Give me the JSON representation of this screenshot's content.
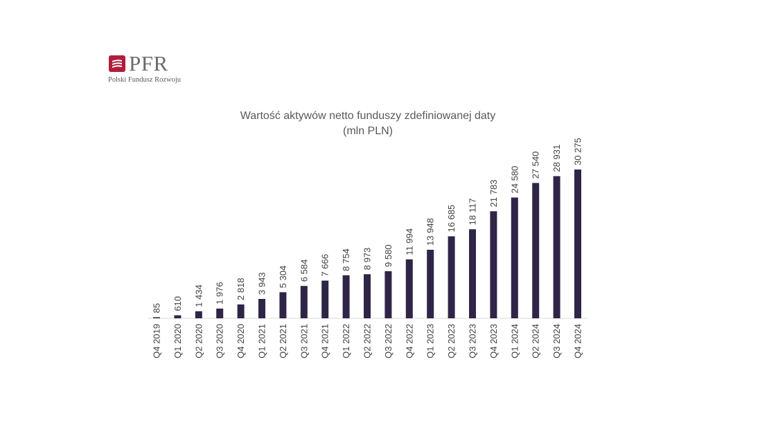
{
  "logo": {
    "text": "PFR",
    "subtitle": "Polski Fundusz Rozwoju",
    "color": "#b01e3b"
  },
  "chart_data": {
    "type": "bar",
    "title": "Wartość aktywów netto funduszy zdefiniowanej daty",
    "subtitle": "(mln PLN)",
    "categories": [
      "Q4 2019",
      "Q1 2020",
      "Q2 2020",
      "Q3 2020",
      "Q4 2020",
      "Q1 2021",
      "Q2 2021",
      "Q3 2021",
      "Q4 2021",
      "Q1 2022",
      "Q2 2022",
      "Q3 2022",
      "Q4 2022",
      "Q1 2023",
      "Q2 2023",
      "Q3 2023",
      "Q4 2023",
      "Q1 2024",
      "Q2 2024",
      "Q3 2024",
      "Q4 2024"
    ],
    "values": [
      85,
      610,
      1434,
      1976,
      2818,
      3943,
      5304,
      6584,
      7666,
      8754,
      8973,
      9580,
      11994,
      13948,
      16685,
      18117,
      21783,
      24580,
      27540,
      28931,
      30275
    ],
    "labels": [
      "85",
      "610",
      "1 434",
      "1 976",
      "2 818",
      "3 943",
      "5 304",
      "6 584",
      "7 666",
      "8 754",
      "8 973",
      "9 580",
      "11 994",
      "13 948",
      "16 685",
      "18 117",
      "21 783",
      "24 580",
      "27 540",
      "28 931",
      "30 275"
    ],
    "bar_color": "#2e2547",
    "ylim": [
      0,
      30275
    ],
    "xlabel": "",
    "ylabel": "",
    "grid": false,
    "legend": "none"
  }
}
